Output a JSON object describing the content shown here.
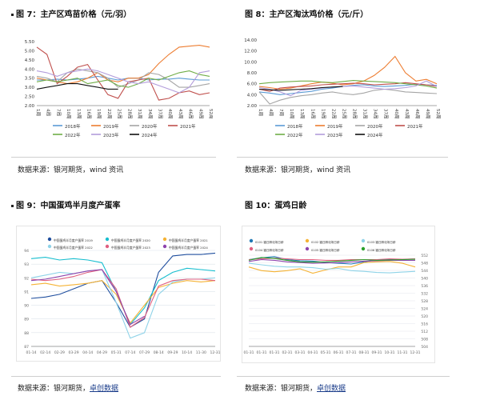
{
  "fig7": {
    "caption": "图 7：主产区鸡苗价格（元/羽）",
    "source": "数据来源：银河期货，wind 资讯",
    "chart_data": {
      "type": "line",
      "ylim": [
        2.0,
        5.5
      ],
      "yticks": [
        "5.50",
        "5.00",
        "4.50",
        "4.00",
        "3.50",
        "3.00",
        "2.50",
        "2.00"
      ],
      "xlabels": [
        "1周",
        "4周",
        "7周",
        "10周",
        "13周",
        "16周",
        "19周",
        "22周",
        "25周",
        "28周",
        "31周",
        "34周",
        "37周",
        "40周",
        "43周",
        "46周",
        "49周",
        "52周"
      ],
      "series": [
        {
          "name": "2018年",
          "color": "#5b9bd5",
          "values": [
            3.4,
            3.4,
            3.45,
            3.4,
            3.45,
            3.5,
            3.6,
            3.5,
            3.4,
            3.5,
            3.5,
            3.4,
            3.45,
            3.45,
            3.5,
            3.45,
            3.4,
            3.4
          ]
        },
        {
          "name": "2019年",
          "color": "#ed7d31",
          "values": [
            3.5,
            3.4,
            3.3,
            3.2,
            3.3,
            3.5,
            3.8,
            3.4,
            3.3,
            3.5,
            3.5,
            3.7,
            4.3,
            4.8,
            5.2,
            5.25,
            5.3,
            5.2
          ]
        },
        {
          "name": "2020年",
          "color": "#a5a5a5",
          "values": [
            3.6,
            3.5,
            3.3,
            3.8,
            4.0,
            3.9,
            3.8,
            3.5,
            3.0,
            3.2,
            3.4,
            3.8,
            3.7,
            3.4,
            3.0,
            3.0,
            3.1,
            3.2
          ]
        },
        {
          "name": "2021年",
          "color": "#c0504d",
          "values": [
            5.2,
            4.8,
            3.2,
            3.6,
            4.1,
            4.25,
            3.4,
            2.6,
            2.4,
            3.3,
            3.4,
            3.5,
            2.3,
            2.4,
            2.7,
            2.8,
            2.6,
            2.7
          ]
        },
        {
          "name": "2022年",
          "color": "#70ad47",
          "values": [
            3.3,
            3.4,
            3.3,
            3.4,
            3.5,
            3.2,
            3.3,
            3.4,
            3.1,
            3.0,
            3.2,
            3.5,
            3.4,
            3.6,
            3.8,
            3.9,
            3.7,
            3.6
          ]
        },
        {
          "name": "2023年",
          "color": "#b39ddb",
          "values": [
            3.9,
            3.8,
            3.6,
            3.8,
            3.9,
            4.0,
            3.9,
            3.7,
            3.5,
            3.3,
            3.2,
            3.3,
            3.1,
            2.9,
            2.7,
            3.0,
            3.8,
            3.9
          ]
        },
        {
          "name": "2024年",
          "color": "#111111",
          "values": [
            2.9,
            3.0,
            3.1,
            3.2,
            3.2,
            3.1,
            3.0,
            2.9,
            2.9,
            null,
            null,
            null,
            null,
            null,
            null,
            null,
            null,
            null
          ]
        }
      ]
    }
  },
  "fig8": {
    "caption": "图 8：主产区淘汰鸡价格（元/斤）",
    "source": "数据来源：银河期货，wind 资讯",
    "chart_data": {
      "type": "line",
      "ylim": [
        2.0,
        14.0
      ],
      "yticks": [
        "14.00",
        "12.00",
        "10.00",
        "8.00",
        "6.00",
        "4.00",
        "2.00"
      ],
      "xlabels": [
        "1周",
        "4周",
        "7周",
        "10周",
        "13周",
        "16周",
        "19周",
        "22周",
        "25周",
        "28周",
        "31周",
        "34周",
        "37周",
        "40周",
        "43周",
        "46周",
        "49周",
        "52周"
      ],
      "series": [
        {
          "name": "2018年",
          "color": "#5b9bd5",
          "values": [
            4.5,
            4.3,
            4.0,
            4.2,
            4.4,
            4.6,
            5.0,
            5.2,
            5.5,
            5.7,
            5.8,
            5.6,
            5.5,
            5.6,
            5.7,
            5.9,
            5.8,
            5.7
          ]
        },
        {
          "name": "2019年",
          "color": "#ed7d31",
          "values": [
            5.5,
            5.3,
            5.0,
            5.2,
            5.6,
            6.0,
            6.3,
            6.1,
            5.8,
            6.0,
            6.5,
            7.5,
            9.0,
            11.0,
            8.0,
            6.5,
            6.8,
            6.0
          ]
        },
        {
          "name": "2020年",
          "color": "#a5a5a5",
          "values": [
            4.5,
            2.3,
            3.0,
            3.5,
            3.8,
            4.0,
            4.3,
            4.5,
            4.2,
            4.0,
            4.3,
            4.8,
            5.0,
            4.8,
            4.5,
            4.4,
            4.3,
            4.2
          ]
        },
        {
          "name": "2021年",
          "color": "#c0504d",
          "values": [
            5.0,
            4.6,
            5.2,
            5.4,
            5.5,
            5.6,
            5.8,
            5.9,
            6.0,
            6.1,
            6.0,
            5.8,
            5.9,
            6.0,
            6.2,
            6.0,
            5.8,
            5.5
          ]
        },
        {
          "name": "2022年",
          "color": "#70ad47",
          "values": [
            6.0,
            6.2,
            6.3,
            6.4,
            6.5,
            6.5,
            6.3,
            6.2,
            6.4,
            6.6,
            6.5,
            6.4,
            6.3,
            6.2,
            6.0,
            5.8,
            5.6,
            5.2
          ]
        },
        {
          "name": "2023年",
          "color": "#b39ddb",
          "values": [
            5.3,
            5.0,
            4.5,
            3.8,
            4.8,
            5.0,
            5.2,
            5.4,
            5.5,
            5.6,
            5.4,
            5.2,
            5.0,
            5.1,
            5.3,
            5.6,
            6.5,
            5.5
          ]
        },
        {
          "name": "2024年",
          "color": "#111111",
          "values": [
            5.0,
            4.9,
            4.8,
            4.9,
            5.0,
            5.1,
            5.3,
            5.4,
            5.5,
            null,
            null,
            null,
            null,
            null,
            null,
            null,
            null,
            null
          ]
        }
      ]
    }
  },
  "fig9": {
    "caption": "图 9：中国蛋鸡半月度产蛋率",
    "source_prefix": "数据来源：银河期货，",
    "source_link": "卓创数据",
    "chart_data": {
      "type": "line",
      "ylim": [
        87,
        94
      ],
      "yticks": [
        "94",
        "93",
        "92",
        "91",
        "90",
        "89",
        "88",
        "87"
      ],
      "xlabels": [
        "01-14",
        "02-14",
        "02-29",
        "03-29",
        "04-14",
        "04-29",
        "05-31",
        "07-14",
        "07-29",
        "08-14",
        "09-29",
        "10-14",
        "11-30",
        "12-31"
      ],
      "series": [
        {
          "name": "中国蛋鸡半月度产蛋率 2019",
          "color": "#1f4e9e",
          "values": [
            90.5,
            90.6,
            90.8,
            91.2,
            91.6,
            91.8,
            90.2,
            88.4,
            89.0,
            92.4,
            93.6,
            93.7,
            93.7,
            93.8
          ]
        },
        {
          "name": "中国蛋鸡半月度产蛋率 2020",
          "color": "#17becf",
          "values": [
            93.4,
            93.5,
            93.3,
            93.4,
            93.3,
            93.1,
            91.0,
            88.6,
            89.8,
            91.8,
            92.4,
            92.7,
            92.6,
            92.5
          ]
        },
        {
          "name": "中国蛋鸡半月度产蛋率 2021",
          "color": "#f5b335",
          "values": [
            91.5,
            91.6,
            91.4,
            91.5,
            91.6,
            91.8,
            90.8,
            88.7,
            90.0,
            91.3,
            91.6,
            91.8,
            91.7,
            91.8
          ]
        },
        {
          "name": "中国蛋鸡半月度产蛋率 2022",
          "color": "#8fd3e8",
          "values": [
            92.0,
            92.2,
            92.4,
            92.3,
            92.5,
            92.6,
            90.2,
            87.6,
            88.0,
            90.8,
            91.7,
            91.9,
            91.9,
            92.0
          ]
        },
        {
          "name": "中国蛋鸡半月度产蛋率 2023",
          "color": "#e06080",
          "values": [
            91.9,
            91.8,
            91.9,
            92.1,
            92.4,
            92.6,
            91.2,
            88.4,
            89.1,
            91.4,
            91.8,
            91.9,
            91.9,
            91.8
          ]
        },
        {
          "name": "中国蛋鸡半月度产蛋率 2024",
          "color": "#8e44ad",
          "values": [
            91.8,
            91.9,
            92.1,
            92.3,
            92.5,
            92.6,
            91.0,
            88.6,
            89.2,
            null,
            null,
            null,
            null,
            null
          ]
        }
      ]
    }
  },
  "fig10": {
    "caption": "图 10：蛋鸡日龄",
    "source_prefix": "数据来源：银河期货，",
    "source_link": "卓创数据",
    "chart_data": {
      "type": "line",
      "ylim": [
        304,
        552
      ],
      "yticks": [
        "552",
        "548",
        "544",
        "540",
        "536",
        "532",
        "528",
        "524",
        "520",
        "516",
        "512",
        "508",
        "504"
      ],
      "xlabels": [
        "01-31",
        "01-31",
        "01-31",
        "02-31",
        "03-31",
        "04-31",
        "05-31",
        "06-31",
        "07-31",
        "08-31",
        "09-31",
        "10-31",
        "11-31",
        "12-31"
      ],
      "series": [
        {
          "name": "0101 福日孵化场日龄",
          "color": "#1f77b4",
          "values": [
            540,
            545,
            548,
            540,
            537,
            536,
            532,
            530,
            528,
            534,
            539,
            541,
            540,
            542
          ]
        },
        {
          "name": "0102 福日孵化场日龄",
          "color": "#f5b335",
          "values": [
            520,
            510,
            507,
            510,
            515,
            503,
            512,
            520,
            520,
            532,
            534,
            535,
            530,
            520
          ]
        },
        {
          "name": "0103 福日孵化场日龄",
          "color": "#8fd3e8",
          "values": [
            530,
            526,
            522,
            520,
            520,
            518,
            514,
            516,
            510,
            508,
            505,
            504,
            506,
            508
          ]
        },
        {
          "name": "0104 福日孵化场日龄",
          "color": "#e06080",
          "values": [
            540,
            542,
            544,
            542,
            540,
            540,
            538,
            538,
            540,
            540,
            540,
            542,
            541,
            542
          ]
        },
        {
          "name": "0105 福日孵化场日龄",
          "color": "#8e44ad",
          "values": [
            535,
            540,
            538,
            534,
            532,
            530,
            531,
            532,
            534,
            536,
            537,
            538,
            538,
            538
          ]
        },
        {
          "name": "0106 福日孵化场日龄",
          "color": "#2ca02c",
          "values": [
            538,
            546,
            543,
            538,
            534,
            533,
            534,
            536,
            538,
            540,
            538,
            539,
            540,
            541
          ]
        }
      ]
    }
  }
}
